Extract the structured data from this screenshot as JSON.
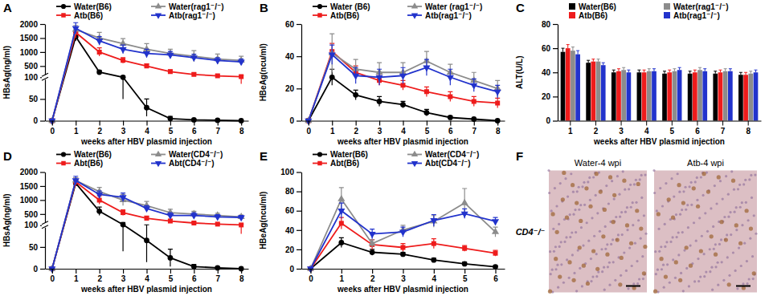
{
  "chart_data": [
    {
      "type": "line",
      "panel_label": "A",
      "xlabel": "weeks after HBV plasmid injection",
      "ylabel": "HBsAg(ng/ml)",
      "x": [
        0,
        1,
        2,
        3,
        4,
        5,
        6,
        7,
        8
      ],
      "xlim": [
        -0.3,
        8.3
      ],
      "xticks": [
        0,
        1,
        2,
        3,
        4,
        5,
        6,
        7,
        8
      ],
      "ylim": [
        0,
        2000
      ],
      "yticks": [
        0,
        50,
        100,
        500,
        1000,
        1500,
        2000
      ],
      "legend": "top",
      "series": [
        {
          "name": "Water(B6)",
          "color": "#000000",
          "marker": "circle",
          "values": [
            0,
            1550,
            280,
            100,
            30,
            5,
            2,
            1,
            0
          ],
          "errors": [
            0,
            150,
            60,
            50,
            20,
            5,
            2,
            1,
            0
          ]
        },
        {
          "name": "Atb(B6)",
          "color": "#ee1c1c",
          "marker": "square",
          "values": [
            0,
            1700,
            1000,
            700,
            500,
            300,
            200,
            150,
            120
          ],
          "errors": [
            0,
            200,
            150,
            100,
            80,
            60,
            50,
            40,
            35
          ]
        },
        {
          "name": "Water(rag1⁻/⁻)",
          "color": "#8c8c8c",
          "marker": "triangle-up",
          "values": [
            0,
            1800,
            1500,
            1300,
            1100,
            950,
            850,
            750,
            700
          ],
          "errors": [
            0,
            150,
            200,
            180,
            200,
            150,
            200,
            180,
            150
          ]
        },
        {
          "name": "Atb(rag1⁻/⁻)",
          "color": "#2233cc",
          "marker": "triangle-down",
          "values": [
            0,
            1850,
            1400,
            1100,
            950,
            900,
            800,
            700,
            650
          ],
          "errors": [
            0,
            200,
            150,
            150,
            150,
            120,
            120,
            100,
            100
          ]
        }
      ]
    },
    {
      "type": "line",
      "panel_label": "B",
      "xlabel": "weeks after HBV plasmid injection",
      "ylabel": "HBeAg(ncu/ml)",
      "x": [
        0,
        1,
        2,
        3,
        4,
        5,
        6,
        7,
        8
      ],
      "xlim": [
        -0.3,
        8.3
      ],
      "xticks": [
        0,
        1,
        2,
        3,
        4,
        5,
        6,
        7,
        8
      ],
      "ylim": [
        0,
        60
      ],
      "yticks": [
        0,
        20,
        40,
        60
      ],
      "legend": "top",
      "series": [
        {
          "name": "Water (B6)",
          "color": "#000000",
          "marker": "circle",
          "values": [
            0,
            27,
            16,
            12,
            10,
            5,
            2,
            1,
            0
          ],
          "errors": [
            0,
            5,
            3,
            3,
            2,
            2,
            1,
            0.5,
            0.3
          ]
        },
        {
          "name": "Atb(B6)",
          "color": "#ee1c1c",
          "marker": "square",
          "values": [
            0,
            43,
            30,
            25,
            22,
            18,
            15,
            12,
            11
          ],
          "errors": [
            0,
            5,
            4,
            3,
            3,
            3,
            3,
            3,
            3
          ]
        },
        {
          "name": "Water (rag1⁻/⁻)",
          "color": "#8c8c8c",
          "marker": "triangle-up",
          "values": [
            0,
            42,
            32,
            30,
            30,
            37,
            30,
            25,
            20
          ],
          "errors": [
            0,
            12,
            6,
            6,
            6,
            6,
            5,
            5,
            5
          ]
        },
        {
          "name": "Atb(rag1⁻/⁻)",
          "color": "#2233cc",
          "marker": "triangle-down",
          "values": [
            0,
            41,
            28,
            27,
            28,
            33,
            27,
            22,
            18
          ],
          "errors": [
            0,
            6,
            5,
            5,
            5,
            5,
            5,
            4,
            4
          ]
        }
      ]
    },
    {
      "type": "bar",
      "panel_label": "C",
      "xlabel": "weeks after HBV plasmid injection",
      "ylabel": "ALT(U/L)",
      "categories": [
        "1",
        "2",
        "3",
        "4",
        "5",
        "6",
        "7",
        "8"
      ],
      "ylim": [
        0,
        80
      ],
      "yticks": [
        0,
        20,
        40,
        60,
        80
      ],
      "legend": "top",
      "series": [
        {
          "name": "Water(B6)",
          "color": "#000000",
          "values": [
            57,
            48,
            40,
            40,
            39,
            39,
            39,
            38
          ],
          "errors": [
            3,
            2,
            2,
            2,
            2,
            2,
            2,
            2
          ]
        },
        {
          "name": "Atb(B6)",
          "color": "#ee1c1c",
          "values": [
            60,
            49,
            41,
            40,
            40,
            40,
            40,
            38
          ],
          "errors": [
            3,
            2,
            2,
            2,
            2,
            2,
            2,
            2
          ]
        },
        {
          "name": "Water(rag1⁻/⁻)",
          "color": "#8c8c8c",
          "values": [
            58,
            49,
            42,
            41,
            41,
            42,
            41,
            39
          ],
          "errors": [
            3,
            2,
            2,
            2,
            2,
            2,
            2,
            2
          ]
        },
        {
          "name": "Atb(rag1⁻/⁻)",
          "color": "#2233cc",
          "values": [
            55,
            46,
            40,
            41,
            42,
            41,
            41,
            40
          ],
          "errors": [
            3,
            2,
            2,
            2,
            2,
            2,
            2,
            2
          ]
        }
      ]
    },
    {
      "type": "line",
      "panel_label": "D",
      "xlabel": "weeks after HBV plasmid injection",
      "ylabel": "HBsAg(ng/ml)",
      "x": [
        0,
        1,
        2,
        3,
        4,
        5,
        6,
        7,
        8
      ],
      "xlim": [
        -0.3,
        8.3
      ],
      "xticks": [
        0,
        1,
        2,
        3,
        4,
        5,
        6,
        7,
        8
      ],
      "ylim": [
        0,
        2000
      ],
      "yticks": [
        0,
        50,
        100,
        500,
        1000,
        1500,
        2000
      ],
      "legend": "top",
      "series": [
        {
          "name": "Water(B6)",
          "color": "#000000",
          "marker": "circle",
          "values": [
            0,
            1600,
            600,
            120,
            65,
            25,
            5,
            2,
            0
          ],
          "errors": [
            0,
            100,
            150,
            80,
            50,
            20,
            5,
            2,
            0
          ]
        },
        {
          "name": "Abt(B6)",
          "color": "#ee1c1c",
          "marker": "square",
          "values": [
            0,
            1650,
            1000,
            550,
            350,
            250,
            180,
            140,
            110
          ],
          "errors": [
            0,
            150,
            150,
            100,
            80,
            60,
            40,
            30,
            30
          ]
        },
        {
          "name": "Water(CD4⁻/⁻)",
          "color": "#8c8c8c",
          "marker": "triangle-up",
          "values": [
            0,
            1700,
            1300,
            1000,
            800,
            550,
            500,
            450,
            400
          ],
          "errors": [
            0,
            100,
            150,
            200,
            150,
            120,
            100,
            80,
            60
          ]
        },
        {
          "name": "Abt(CD4⁻/⁻)",
          "color": "#2233cc",
          "marker": "triangle-down",
          "values": [
            0,
            1700,
            1200,
            1100,
            700,
            450,
            450,
            400,
            380
          ],
          "errors": [
            0,
            150,
            120,
            150,
            100,
            100,
            100,
            80,
            70
          ]
        }
      ]
    },
    {
      "type": "line",
      "panel_label": "E",
      "xlabel": "weeks after HBV plasmid injection",
      "ylabel": "HBeAg(ncu/ml)",
      "x": [
        0,
        1,
        2,
        3,
        4,
        5,
        6
      ],
      "xlim": [
        -0.3,
        6.3
      ],
      "xticks": [
        0,
        1,
        2,
        3,
        4,
        5,
        6
      ],
      "ylim": [
        0,
        100
      ],
      "yticks": [
        0,
        20,
        40,
        60,
        80,
        100
      ],
      "legend": "top",
      "series": [
        {
          "name": "Water(B6)",
          "color": "#000000",
          "marker": "circle",
          "values": [
            0,
            27,
            17,
            15,
            9,
            5,
            2
          ],
          "errors": [
            0,
            5,
            3,
            2,
            2,
            2,
            1
          ]
        },
        {
          "name": "Abt(B6)",
          "color": "#ee1c1c",
          "marker": "square",
          "values": [
            0,
            47,
            25,
            22,
            26,
            21,
            16
          ],
          "errors": [
            0,
            6,
            5,
            4,
            5,
            3,
            3
          ]
        },
        {
          "name": "Water(CD4⁻/⁻)",
          "color": "#8c8c8c",
          "marker": "triangle-up",
          "values": [
            0,
            72,
            26,
            40,
            49,
            68,
            38
          ],
          "errors": [
            0,
            12,
            4,
            5,
            6,
            15,
            5
          ]
        },
        {
          "name": "Abt(CD4⁻/⁻)",
          "color": "#2233cc",
          "marker": "triangle-down",
          "values": [
            0,
            60,
            36,
            38,
            50,
            57,
            49
          ],
          "errors": [
            0,
            8,
            5,
            5,
            6,
            5,
            4
          ]
        }
      ]
    }
  ],
  "image_panel": {
    "panel_label": "F",
    "titles": [
      "Water-4 wpi",
      "Atb-4 wpi"
    ],
    "row_label": "CD4⁻/⁻"
  }
}
